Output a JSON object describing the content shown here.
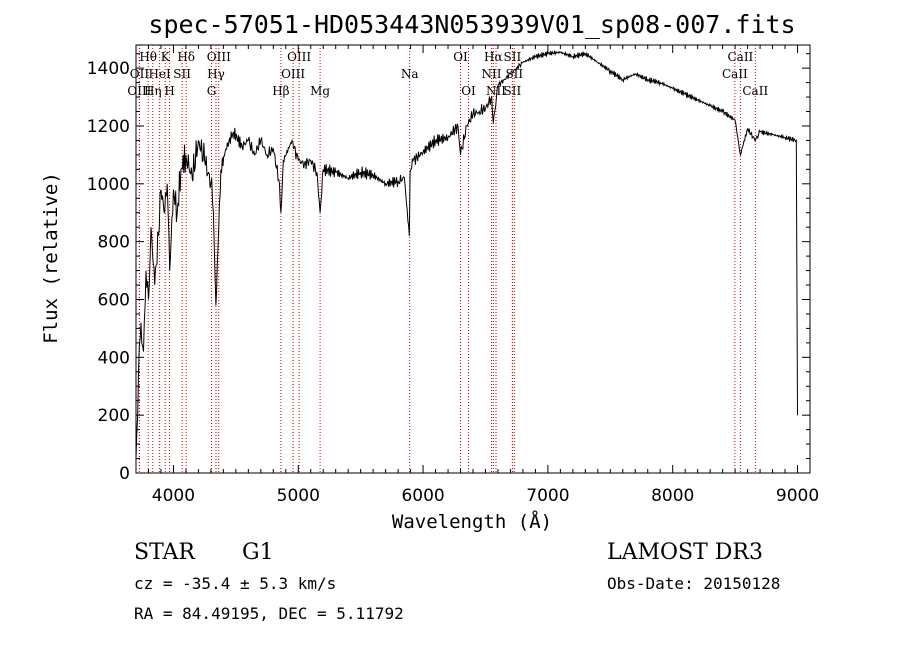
{
  "chart_data": {
    "type": "line",
    "title": "spec-57051-HD053443N053939V01_sp08-007.fits",
    "xlabel": "Wavelength (Å)",
    "ylabel": "Flux (relative)",
    "xlim": [
      3700,
      9100
    ],
    "ylim": [
      0,
      1480
    ],
    "x_ticks": [
      4000,
      5000,
      6000,
      7000,
      8000,
      9000
    ],
    "y_ticks": [
      0,
      200,
      400,
      600,
      800,
      1000,
      1200,
      1400
    ],
    "grid": false,
    "series": [
      {
        "name": "flux",
        "x": [
          3700,
          3720,
          3740,
          3760,
          3780,
          3800,
          3820,
          3850,
          3880,
          3900,
          3930,
          3950,
          3970,
          4000,
          4030,
          4060,
          4100,
          4150,
          4200,
          4250,
          4300,
          4320,
          4340,
          4380,
          4420,
          4480,
          4550,
          4600,
          4650,
          4700,
          4750,
          4800,
          4850,
          4861,
          4880,
          4950,
          5000,
          5050,
          5100,
          5150,
          5175,
          5200,
          5300,
          5400,
          5500,
          5600,
          5700,
          5800,
          5850,
          5890,
          5896,
          5920,
          6000,
          6100,
          6200,
          6280,
          6300,
          6350,
          6400,
          6450,
          6500,
          6550,
          6563,
          6600,
          6650,
          6700,
          6750,
          6800,
          6900,
          7000,
          7100,
          7200,
          7300,
          7400,
          7500,
          7600,
          7700,
          7800,
          7900,
          8000,
          8100,
          8200,
          8300,
          8400,
          8500,
          8542,
          8600,
          8662,
          8700,
          8800,
          8900,
          8990,
          9000
        ],
        "y": [
          50,
          350,
          520,
          420,
          700,
          600,
          850,
          650,
          820,
          980,
          900,
          1000,
          700,
          980,
          900,
          1050,
          1100,
          1020,
          1150,
          1080,
          1000,
          900,
          580,
          1050,
          1120,
          1180,
          1130,
          1150,
          1100,
          1150,
          1100,
          1120,
          1000,
          900,
          1080,
          1150,
          1080,
          1070,
          1080,
          1040,
          900,
          1050,
          1040,
          1020,
          1040,
          1030,
          1000,
          1010,
          1020,
          820,
          1040,
          1080,
          1110,
          1150,
          1160,
          1200,
          1100,
          1200,
          1240,
          1250,
          1260,
          1300,
          1210,
          1340,
          1360,
          1380,
          1400,
          1420,
          1440,
          1450,
          1455,
          1440,
          1450,
          1420,
          1390,
          1360,
          1380,
          1360,
          1350,
          1330,
          1310,
          1290,
          1270,
          1250,
          1220,
          1100,
          1190,
          1150,
          1180,
          1170,
          1160,
          1150,
          200
        ]
      }
    ],
    "line_markers": [
      {
        "label": "Hθ",
        "wavelength": 3798,
        "row": 1
      },
      {
        "label": "OII",
        "wavelength": 3727,
        "row": 2
      },
      {
        "label": "OIII",
        "wavelength": 3727,
        "row": 3
      },
      {
        "label": "K",
        "wavelength": 3934,
        "row": 1
      },
      {
        "label": "HeI",
        "wavelength": 3889,
        "row": 2
      },
      {
        "label": "Hη",
        "wavelength": 3835,
        "row": 3
      },
      {
        "label": "SII",
        "wavelength": 4069,
        "row": 2
      },
      {
        "label": "H",
        "wavelength": 3969,
        "row": 3
      },
      {
        "label": "Hδ",
        "wavelength": 4102,
        "row": 1
      },
      {
        "label": "OIII",
        "wavelength": 4363,
        "row": 1
      },
      {
        "label": "Hγ",
        "wavelength": 4341,
        "row": 2
      },
      {
        "label": "G",
        "wavelength": 4305,
        "row": 3
      },
      {
        "label": "Hβ",
        "wavelength": 4861,
        "row": 3
      },
      {
        "label": "OIII",
        "wavelength": 5007,
        "row": 1
      },
      {
        "label": "OIII",
        "wavelength": 4959,
        "row": 2
      },
      {
        "label": "Mg",
        "wavelength": 5175,
        "row": 3
      },
      {
        "label": "Na",
        "wavelength": 5893,
        "row": 2
      },
      {
        "label": "OI",
        "wavelength": 6300,
        "row": 1
      },
      {
        "label": "OI",
        "wavelength": 6364,
        "row": 3
      },
      {
        "label": "Hα",
        "wavelength": 6563,
        "row": 1
      },
      {
        "label": "SII",
        "wavelength": 6716,
        "row": 1
      },
      {
        "label": "NII",
        "wavelength": 6548,
        "row": 2
      },
      {
        "label": "SII",
        "wavelength": 6731,
        "row": 2
      },
      {
        "label": "NII",
        "wavelength": 6584,
        "row": 3
      },
      {
        "label": "SII",
        "wavelength": 6716,
        "row": 3
      },
      {
        "label": "CaII",
        "wavelength": 8542,
        "row": 1
      },
      {
        "label": "CaII",
        "wavelength": 8498,
        "row": 2
      },
      {
        "label": "CaII",
        "wavelength": 8662,
        "row": 3
      }
    ]
  },
  "info": {
    "object_class": "STAR",
    "subclass": "G1",
    "survey": "LAMOST DR3",
    "cz": "cz = -35.4 ± 5.3 km/s",
    "obs_date": "Obs-Date: 20150128",
    "coords": "RA =  84.49195, DEC =   5.11792"
  },
  "colors": {
    "spectrum": "#000000",
    "marker_line": "#cc0000",
    "background": "#ffffff"
  }
}
